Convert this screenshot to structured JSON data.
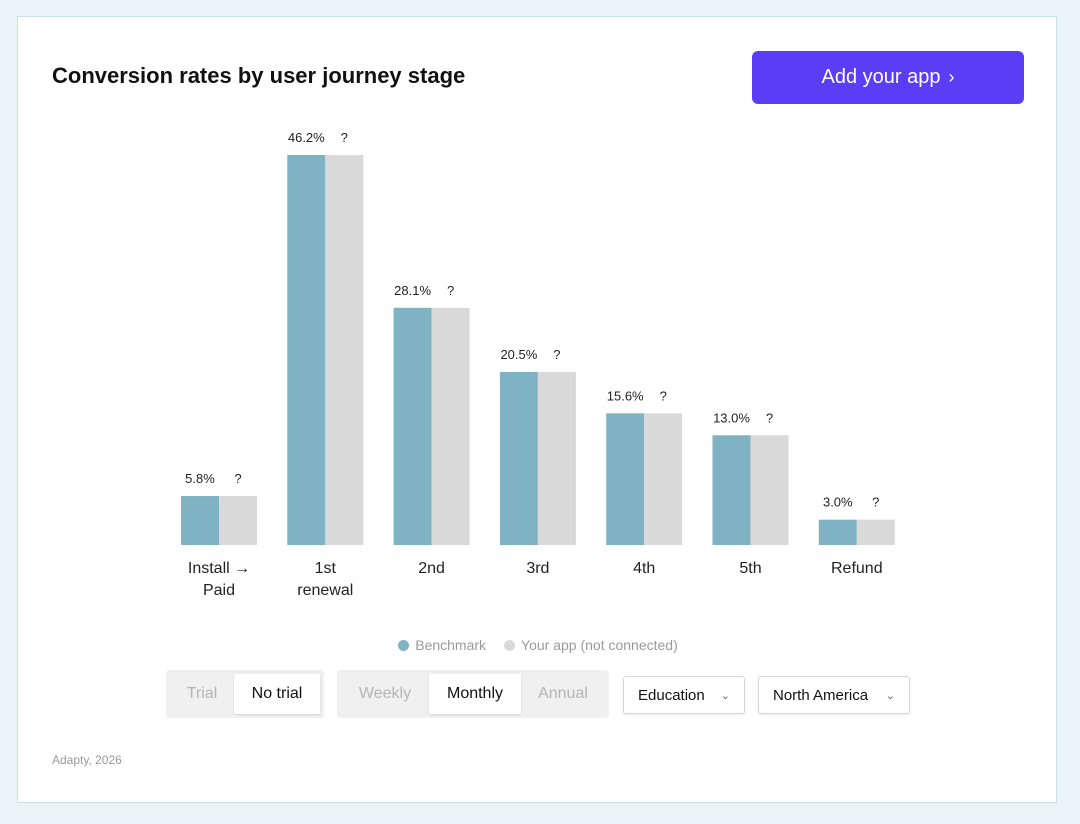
{
  "header": {
    "title": "Conversion rates by user journey stage",
    "cta_label": "Add your app",
    "cta_icon": "chevron-right-icon"
  },
  "chart_data": {
    "type": "bar",
    "categories": [
      [
        "Install →",
        "Paid"
      ],
      [
        "1st",
        "renewal"
      ],
      [
        "2nd"
      ],
      [
        "3rd"
      ],
      [
        "4th"
      ],
      [
        "5th"
      ],
      [
        "Refund"
      ]
    ],
    "series": [
      {
        "name": "Benchmark",
        "color": "#7fb3c3",
        "values": [
          5.8,
          46.2,
          28.1,
          20.5,
          15.6,
          13.0,
          3.0
        ],
        "labels": [
          "5.8%",
          "46.2%",
          "28.1%",
          "20.5%",
          "15.6%",
          "13.0%",
          "3.0%"
        ]
      },
      {
        "name": "Your app (not connected)",
        "color": "#d9d9d9",
        "values": [
          5.8,
          46.2,
          28.1,
          20.5,
          15.6,
          13.0,
          3.0
        ],
        "labels": [
          "?",
          "?",
          "?",
          "?",
          "?",
          "?",
          "?"
        ]
      }
    ],
    "ylim": [
      0,
      46.2
    ],
    "grid": false,
    "legend_position": "bottom-center"
  },
  "controls": {
    "trial": {
      "options": [
        "Trial",
        "No trial"
      ],
      "selected": "No trial"
    },
    "period": {
      "options": [
        "Weekly",
        "Monthly",
        "Annual"
      ],
      "selected": "Monthly"
    },
    "category": {
      "value": "Education"
    },
    "region": {
      "value": "North America"
    }
  },
  "footer": {
    "text": "Adapty, 2026"
  }
}
